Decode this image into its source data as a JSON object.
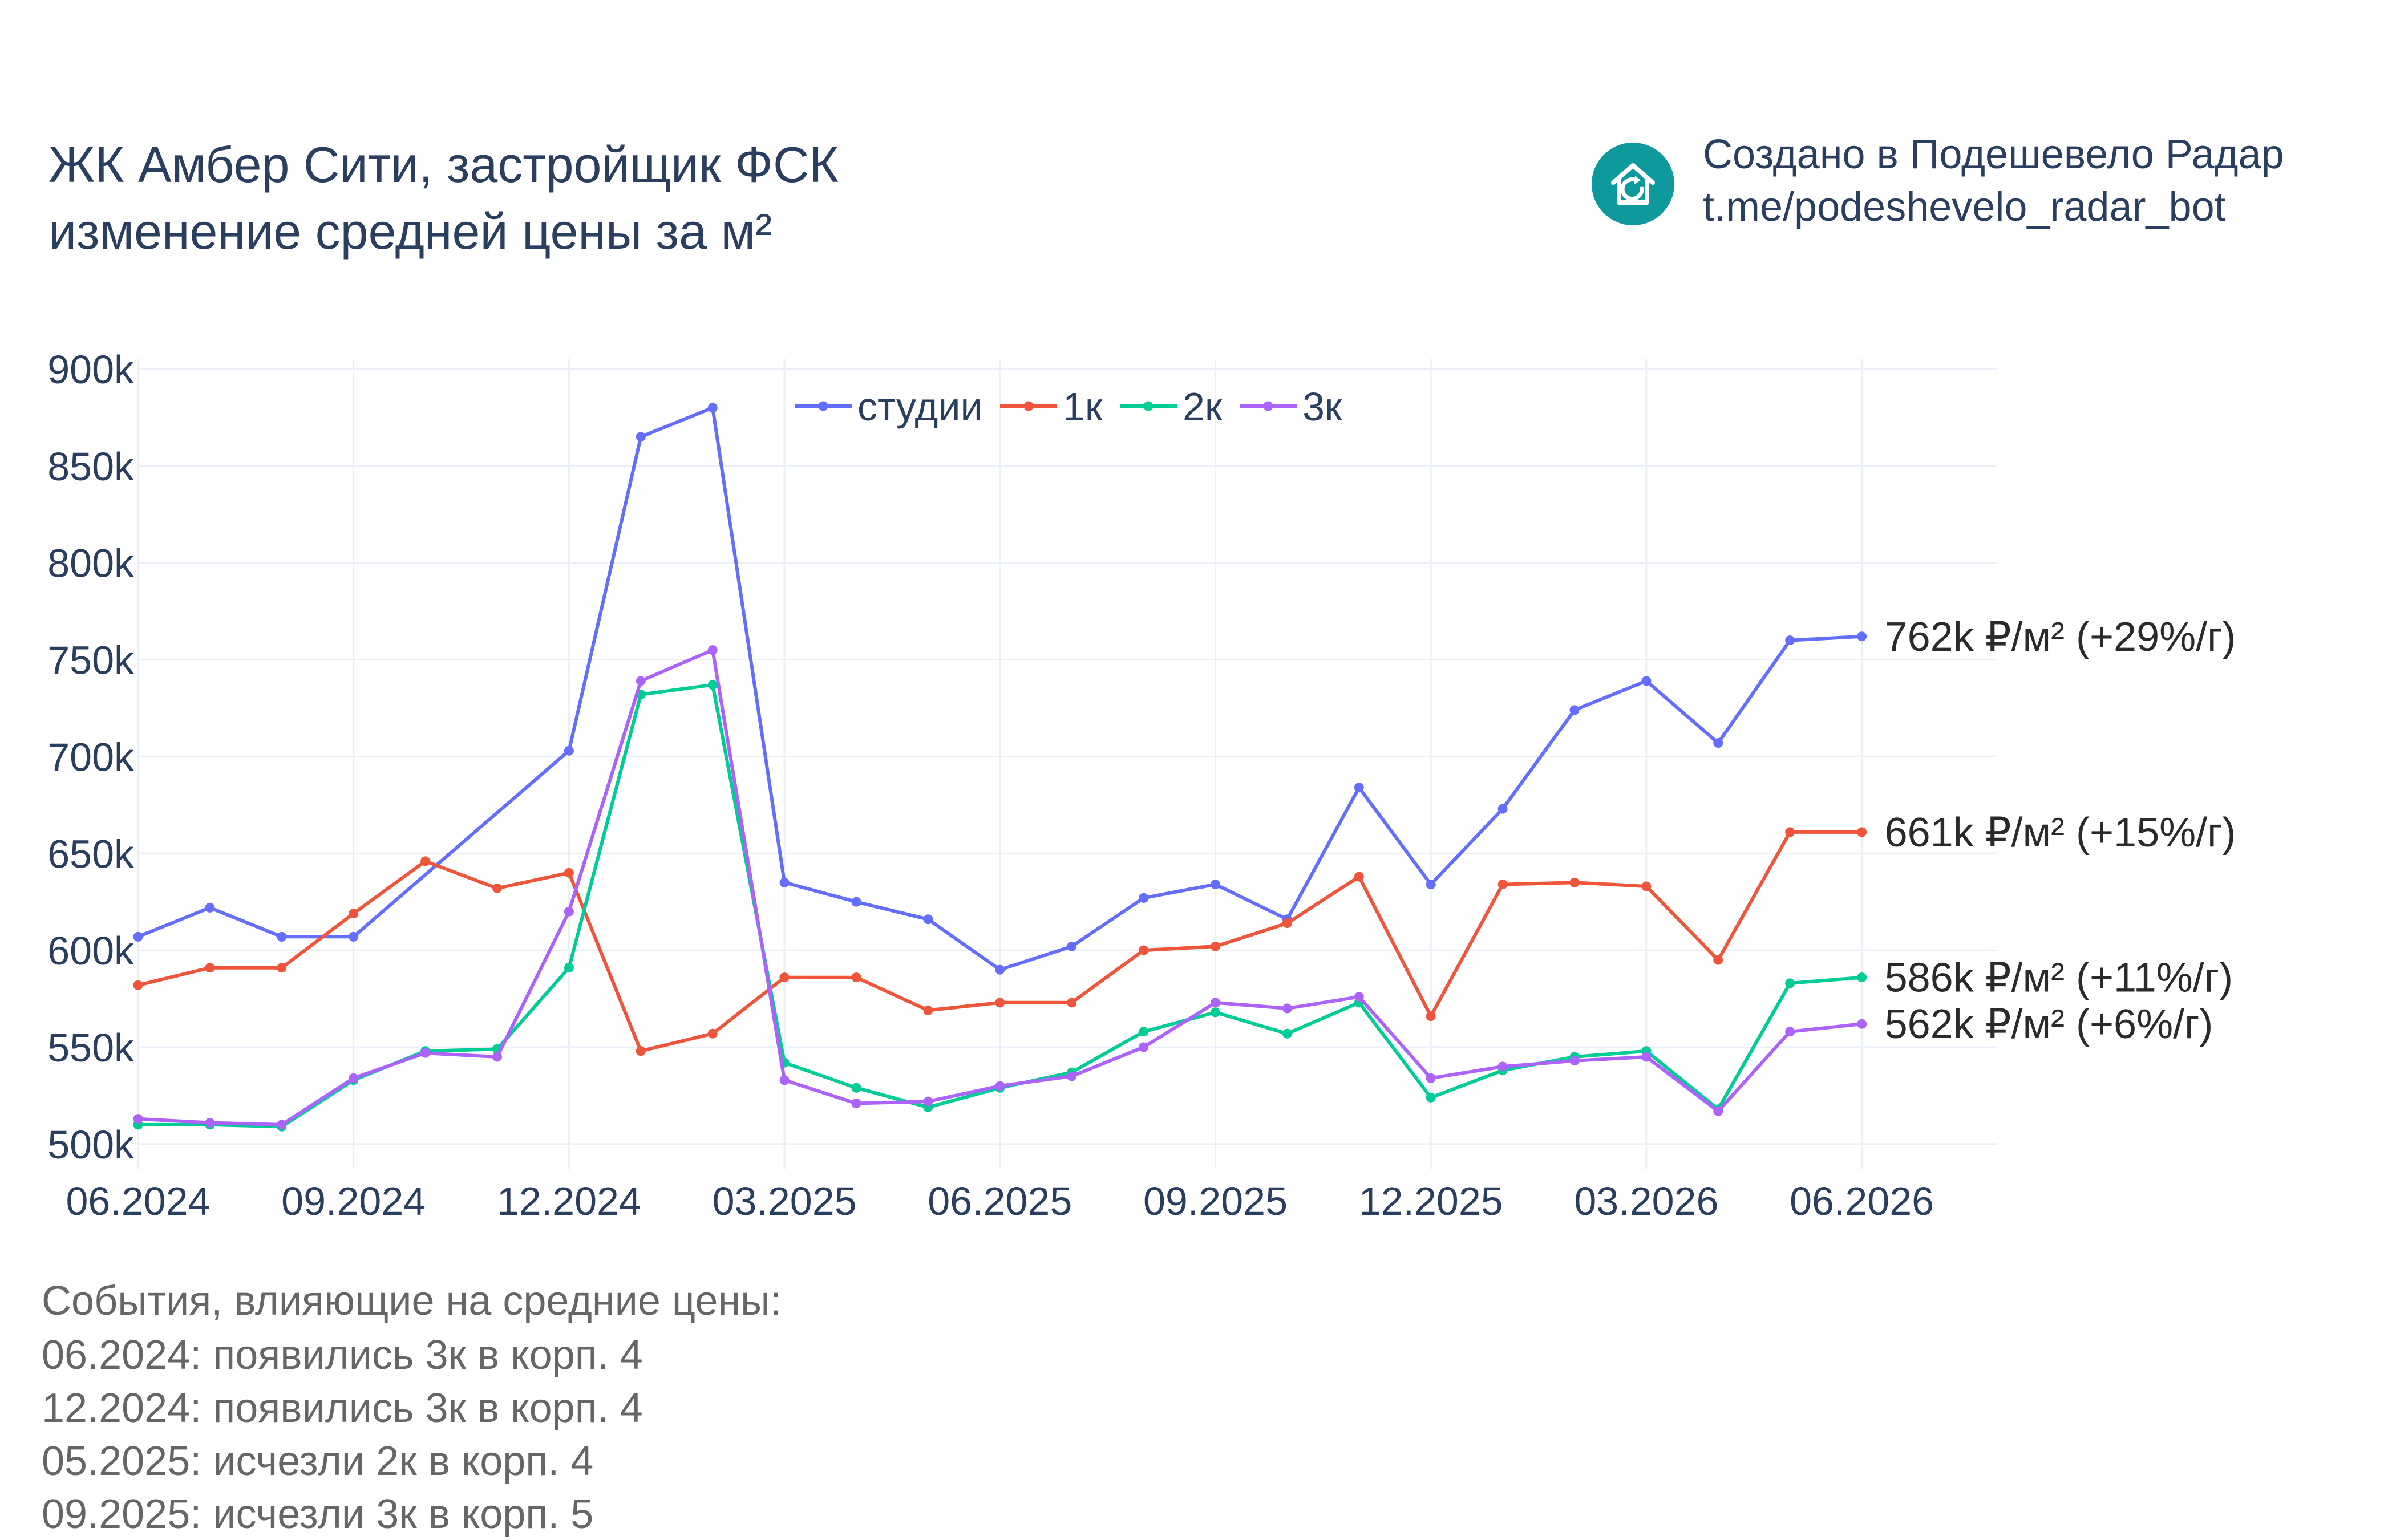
{
  "header": {
    "title_line1": "ЖК Амбер Сити, застройщик ФСК",
    "title_line2": "изменение средней цены за м²",
    "credit_line1": "Создано в Подешевело Радар",
    "credit_line2": "t.me/podeshevelo_radar_bot",
    "logo_icon": "house-refresh-icon",
    "logo_color": "#0e9a9c"
  },
  "events": {
    "heading": "События, влияющие на средние цены:",
    "items": [
      "06.2024: появились 3к в корп. 4",
      "12.2024: появились 3к в корп. 4",
      "05.2025: исчезли 2к в корп. 4",
      "09.2025: исчезли 3к в корп. 5"
    ]
  },
  "chart_data": {
    "type": "line",
    "title": "ЖК Амбер Сити, застройщик ФСК",
    "subtitle": "изменение средней цены за м²",
    "xlabel": "",
    "ylabel": "",
    "x": [
      "06.2024",
      "07.2024",
      "08.2024",
      "09.2024",
      "10.2024",
      "11.2024",
      "12.2024",
      "01.2025",
      "02.2025",
      "03.2025",
      "04.2025",
      "05.2025",
      "06.2025",
      "07.2025",
      "08.2025",
      "09.2025",
      "10.2025",
      "11.2025",
      "12.2025",
      "01.2026",
      "02.2026",
      "03.2026",
      "04.2026",
      "05.2026",
      "06.2026"
    ],
    "x_ticks": [
      "06.2024",
      "09.2024",
      "12.2024",
      "03.2025",
      "06.2025",
      "09.2025",
      "12.2025",
      "03.2026",
      "06.2026"
    ],
    "ylim": [
      487000,
      905000
    ],
    "y_ticks": [
      500000,
      550000,
      600000,
      650000,
      700000,
      750000,
      800000,
      850000,
      900000
    ],
    "y_tick_labels": [
      "500k",
      "550k",
      "600k",
      "650k",
      "700k",
      "750k",
      "800k",
      "850k",
      "900k"
    ],
    "grid": true,
    "legend": "top-center",
    "series": [
      {
        "name": "студии",
        "color": "#636efa",
        "values": [
          607000,
          622000,
          607000,
          607000,
          null,
          null,
          703000,
          865000,
          880000,
          635000,
          625000,
          616000,
          590000,
          602000,
          627000,
          634000,
          616000,
          684000,
          634000,
          673000,
          724000,
          739000,
          707000,
          760000,
          762000
        ],
        "end_label": "762k ₽/м² (+29%/г)"
      },
      {
        "name": "1к",
        "color": "#ef553b",
        "values": [
          582000,
          591000,
          591000,
          619000,
          646000,
          632000,
          640000,
          548000,
          557000,
          586000,
          586000,
          569000,
          573000,
          573000,
          600000,
          602000,
          614000,
          638000,
          566000,
          634000,
          635000,
          633000,
          595000,
          661000,
          661000
        ],
        "end_label": "661k ₽/м² (+15%/г)"
      },
      {
        "name": "2к",
        "color": "#00cc96",
        "values": [
          510000,
          510000,
          509000,
          533000,
          548000,
          549000,
          591000,
          732000,
          737000,
          542000,
          529000,
          519000,
          529000,
          537000,
          558000,
          568000,
          557000,
          573000,
          524000,
          538000,
          545000,
          548000,
          518000,
          583000,
          586000
        ],
        "end_label": "586k ₽/м² (+11%/г)"
      },
      {
        "name": "3к",
        "color": "#ab63fa",
        "values": [
          513000,
          511000,
          510000,
          534000,
          547000,
          545000,
          620000,
          739000,
          755000,
          533000,
          521000,
          522000,
          530000,
          535000,
          550000,
          573000,
          570000,
          576000,
          534000,
          540000,
          543000,
          545000,
          517000,
          558000,
          562000
        ],
        "end_label": "562k ₽/м² (+6%/г)"
      }
    ]
  }
}
